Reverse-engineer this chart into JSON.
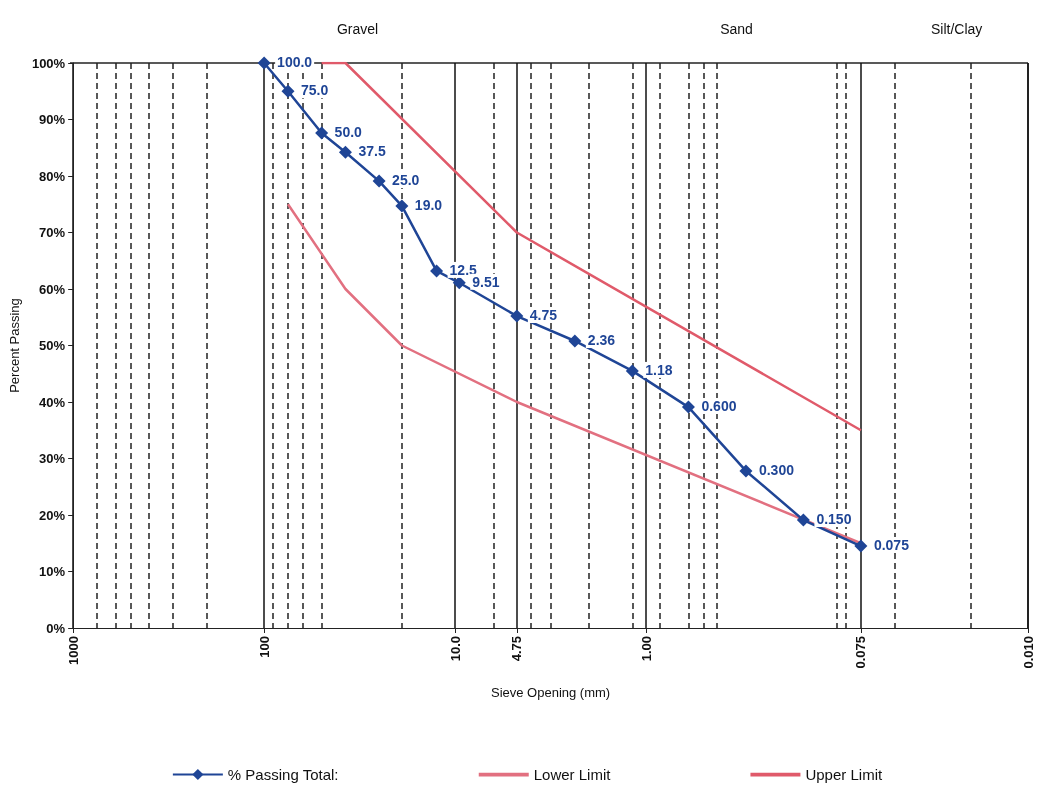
{
  "chart_data": {
    "type": "line",
    "xlabel": "Sieve Opening (mm)",
    "ylabel": "Percent Passing",
    "annotations": [
      "Gravel",
      "Sand",
      "Silt/Clay",
      {
        "text": "100.0",
        "x": 100,
        "y": 100
      },
      {
        "text": "75.0",
        "x": 75,
        "y": 95
      },
      {
        "text": "50.0",
        "x": 50,
        "y": 87.6
      },
      {
        "text": "37.5",
        "x": 37.5,
        "y": 84.2
      },
      {
        "text": "25.0",
        "x": 25,
        "y": 79.1
      },
      {
        "text": "19.0",
        "x": 19,
        "y": 74.7
      },
      {
        "text": "12.5",
        "x": 12.5,
        "y": 63.2
      },
      {
        "text": "9.51",
        "x": 9.51,
        "y": 61.1
      },
      {
        "text": "4.75",
        "x": 4.75,
        "y": 55.2
      },
      {
        "text": "2.36",
        "x": 2.36,
        "y": 50.8
      },
      {
        "text": "1.18",
        "x": 1.18,
        "y": 45.5
      },
      {
        "text": "0.600",
        "x": 0.6,
        "y": 39.1
      },
      {
        "text": "0.300",
        "x": 0.3,
        "y": 27.8
      },
      {
        "text": "0.150",
        "x": 0.15,
        "y": 19.1
      },
      {
        "text": "0.075",
        "x": 0.075,
        "y": 14.5
      }
    ],
    "log": "x",
    "xlim": [
      1000,
      0.01
    ],
    "xticks": [
      {
        "value": 1000,
        "label": "1000"
      },
      {
        "value": 750,
        "label": null
      },
      {
        "value": 600,
        "label": null
      },
      {
        "value": 500,
        "label": null
      },
      {
        "value": 400,
        "label": null
      },
      {
        "value": 300,
        "label": null
      },
      {
        "value": 200,
        "label": null
      },
      {
        "value": 100,
        "label": "100"
      },
      {
        "value": 90,
        "label": null
      },
      {
        "value": 75,
        "label": null
      },
      {
        "value": 63,
        "label": null
      },
      {
        "value": 50,
        "label": null
      },
      {
        "value": 19,
        "label": null
      },
      {
        "value": 10,
        "label": "10.0"
      },
      {
        "value": 6.3,
        "label": null
      },
      {
        "value": 4.75,
        "label": "4.75"
      },
      {
        "value": 4,
        "label": null
      },
      {
        "value": 3.15,
        "label": null
      },
      {
        "value": 2,
        "label": null
      },
      {
        "value": 1.18,
        "label": null
      },
      {
        "value": 1,
        "label": "1.00"
      },
      {
        "value": 0.85,
        "label": null
      },
      {
        "value": 0.6,
        "label": null
      },
      {
        "value": 0.5,
        "label": null
      },
      {
        "value": 0.425,
        "label": null
      },
      {
        "value": 0.1,
        "label": null
      },
      {
        "value": 0.09,
        "label": null
      },
      {
        "value": 0.075,
        "label": "0.075"
      },
      {
        "value": 0.05,
        "label": null
      },
      {
        "value": 0.02,
        "label": null
      },
      {
        "value": 0.01,
        "label": "0.010"
      }
    ],
    "ylim": [
      0,
      100
    ],
    "yticks": [
      {
        "value": 0,
        "label": "0%"
      },
      {
        "value": 10,
        "label": "10%"
      },
      {
        "value": 20,
        "label": "20%"
      },
      {
        "value": 30,
        "label": "30%"
      },
      {
        "value": 40,
        "label": "40%"
      },
      {
        "value": 50,
        "label": "50%"
      },
      {
        "value": 60,
        "label": "60%"
      },
      {
        "value": 70,
        "label": "70%"
      },
      {
        "value": 80,
        "label": "80%"
      },
      {
        "value": 90,
        "label": "90%"
      },
      {
        "value": 100,
        "label": "100%"
      }
    ],
    "grid": "x",
    "legend": "bottom",
    "series": [
      {
        "name": "% Passing Total:",
        "color": "#1f4596",
        "marker": "diamond",
        "x": [
          100,
          75,
          50,
          37.5,
          25,
          19,
          12.5,
          9.51,
          4.75,
          2.36,
          1.18,
          0.6,
          0.3,
          0.15,
          0.075
        ],
        "values": [
          100,
          95,
          87.6,
          84.2,
          79.1,
          74.7,
          63.2,
          61.1,
          55.2,
          50.8,
          45.5,
          39.1,
          27.8,
          19.1,
          14.5
        ]
      },
      {
        "name": "Lower Limit",
        "color": "#e27080",
        "marker": "none",
        "x": [
          75,
          37.5,
          19,
          4.75,
          0.075
        ],
        "values": [
          75,
          60,
          50,
          40,
          15
        ]
      },
      {
        "name": "Upper Limit",
        "color": "#e05a6a",
        "marker": "none",
        "x": [
          50,
          37.5,
          4.75,
          0.075
        ],
        "values": [
          100,
          100,
          70,
          35
        ]
      }
    ]
  }
}
